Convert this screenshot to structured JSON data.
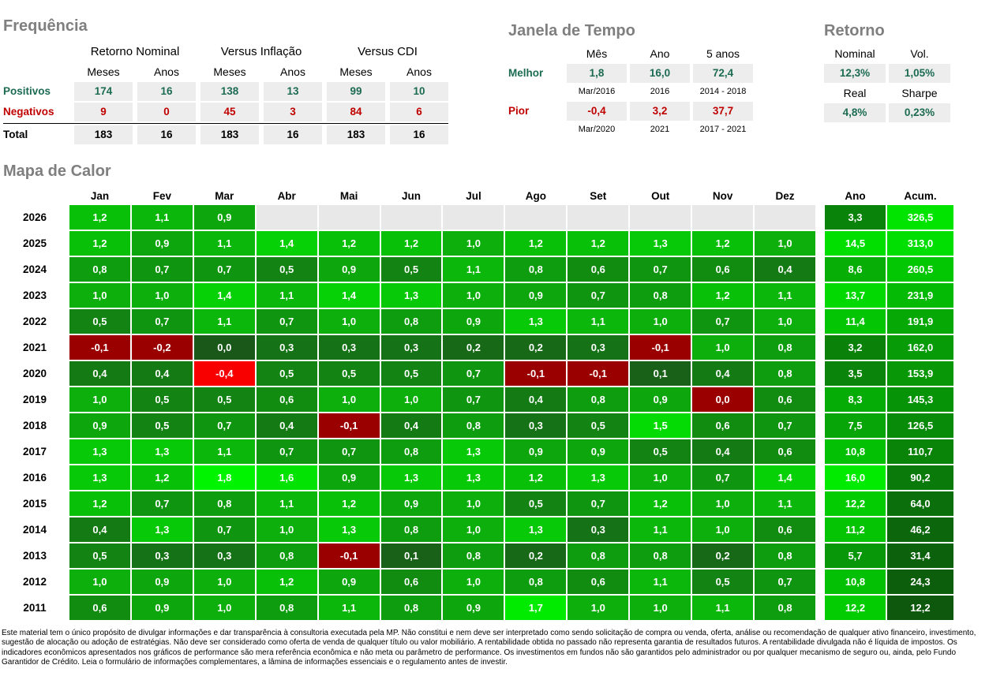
{
  "colors": {
    "positive": "#1C6B52",
    "negative": "#C00000",
    "neutral": "#000000",
    "title_gray": "#7F7F7F",
    "cell_bg": "#EDEDED"
  },
  "frequencia": {
    "title": "Frequência",
    "groups": [
      "Retorno Nominal",
      "Versus Inflação",
      "Versus CDI"
    ],
    "sub_headers": [
      "Meses",
      "Anos",
      "Meses",
      "Anos",
      "Meses",
      "Anos"
    ],
    "rows": [
      {
        "label": "Positivos",
        "color": "positive",
        "values": [
          "174",
          "16",
          "138",
          "13",
          "99",
          "10"
        ]
      },
      {
        "label": "Negativos",
        "color": "negative",
        "values": [
          "9",
          "0",
          "45",
          "3",
          "84",
          "6"
        ]
      },
      {
        "label": "Total",
        "color": "neutral",
        "values": [
          "183",
          "16",
          "183",
          "16",
          "183",
          "16"
        ]
      }
    ]
  },
  "janela": {
    "title": "Janela de Tempo",
    "headers": [
      "Mês",
      "Ano",
      "5 anos"
    ],
    "rows": [
      {
        "label": "Melhor",
        "color": "positive",
        "values": [
          "1,8",
          "16,0",
          "72,4"
        ],
        "periods": [
          "Mar/2016",
          "2016",
          "2014 - 2018"
        ]
      },
      {
        "label": "Pior",
        "color": "negative",
        "values": [
          "-0,4",
          "3,2",
          "37,7"
        ],
        "periods": [
          "Mar/2020",
          "2021",
          "2017 - 2021"
        ]
      }
    ]
  },
  "retorno": {
    "title": "Retorno",
    "rows": [
      {
        "headers": [
          "Nominal",
          "Vol."
        ],
        "values": [
          "12,3%",
          "1,05%"
        ]
      },
      {
        "headers": [
          "Real",
          "Sharpe"
        ],
        "values": [
          "4,8%",
          "0,23%"
        ]
      }
    ]
  },
  "chart_data": {
    "type": "heatmap",
    "title": "Mapa de Calor",
    "columns": [
      "Jan",
      "Fev",
      "Mar",
      "Abr",
      "Mai",
      "Jun",
      "Jul",
      "Ago",
      "Set",
      "Out",
      "Nov",
      "Dez"
    ],
    "extra_columns": [
      "Ano",
      "Acum."
    ],
    "rows": [
      {
        "year": "2026",
        "months": [
          1.2,
          1.1,
          0.9,
          null,
          null,
          null,
          null,
          null,
          null,
          null,
          null,
          null
        ],
        "ano": 3.3,
        "acum": 326.5
      },
      {
        "year": "2025",
        "months": [
          1.2,
          0.9,
          1.1,
          1.4,
          1.2,
          1.2,
          1.0,
          1.2,
          1.2,
          1.3,
          1.2,
          1.0
        ],
        "ano": 14.5,
        "acum": 313.0
      },
      {
        "year": "2024",
        "months": [
          0.8,
          0.7,
          0.7,
          0.5,
          0.9,
          0.5,
          1.1,
          0.8,
          0.6,
          0.7,
          0.6,
          0.4
        ],
        "ano": 8.6,
        "acum": 260.5
      },
      {
        "year": "2023",
        "months": [
          1.0,
          1.0,
          1.4,
          1.1,
          1.4,
          1.3,
          1.0,
          0.9,
          0.7,
          0.8,
          1.2,
          1.1
        ],
        "ano": 13.7,
        "acum": 231.9
      },
      {
        "year": "2022",
        "months": [
          0.5,
          0.7,
          1.1,
          0.7,
          1.0,
          0.8,
          0.9,
          1.3,
          1.1,
          1.0,
          0.7,
          1.0
        ],
        "ano": 11.4,
        "acum": 191.9
      },
      {
        "year": "2021",
        "months": [
          -0.1,
          -0.2,
          0.0,
          0.3,
          0.3,
          0.3,
          0.2,
          0.2,
          0.3,
          -0.1,
          1.0,
          0.8
        ],
        "ano": 3.2,
        "acum": 162.0
      },
      {
        "year": "2020",
        "months": [
          0.4,
          0.4,
          -0.4,
          0.5,
          0.5,
          0.5,
          0.7,
          -0.1,
          -0.1,
          0.1,
          0.4,
          0.8
        ],
        "ano": 3.5,
        "acum": 153.9
      },
      {
        "year": "2019",
        "months": [
          1.0,
          0.5,
          0.5,
          0.6,
          1.0,
          1.0,
          0.7,
          0.4,
          0.8,
          0.9,
          0.0,
          0.6
        ],
        "ano": 8.3,
        "acum": 145.3
      },
      {
        "year": "2018",
        "months": [
          0.9,
          0.5,
          0.7,
          0.4,
          -0.1,
          0.4,
          0.8,
          0.3,
          0.5,
          1.5,
          0.6,
          0.7
        ],
        "ano": 7.5,
        "acum": 126.5
      },
      {
        "year": "2017",
        "months": [
          1.3,
          1.3,
          1.1,
          0.7,
          0.7,
          0.8,
          1.3,
          0.9,
          0.9,
          0.5,
          0.4,
          0.6
        ],
        "ano": 10.8,
        "acum": 110.7
      },
      {
        "year": "2016",
        "months": [
          1.3,
          1.2,
          1.8,
          1.6,
          0.9,
          1.3,
          1.3,
          1.2,
          1.3,
          1.0,
          0.7,
          1.4
        ],
        "ano": 16.0,
        "acum": 90.2
      },
      {
        "year": "2015",
        "months": [
          1.2,
          0.7,
          0.8,
          1.1,
          1.2,
          0.9,
          1.0,
          0.5,
          0.7,
          1.2,
          1.0,
          1.1
        ],
        "ano": 12.2,
        "acum": 64.0
      },
      {
        "year": "2014",
        "months": [
          0.4,
          1.3,
          0.7,
          1.0,
          1.3,
          0.8,
          1.0,
          1.3,
          0.3,
          1.1,
          1.0,
          0.6
        ],
        "ano": 11.2,
        "acum": 46.2
      },
      {
        "year": "2013",
        "months": [
          0.5,
          0.3,
          0.3,
          0.8,
          -0.1,
          0.1,
          0.8,
          0.2,
          0.8,
          0.8,
          0.2,
          0.8
        ],
        "ano": 5.7,
        "acum": 31.4
      },
      {
        "year": "2012",
        "months": [
          1.0,
          0.9,
          1.0,
          1.2,
          0.9,
          0.6,
          1.0,
          0.8,
          0.6,
          1.1,
          0.5,
          0.7
        ],
        "ano": 10.8,
        "acum": 24.3
      },
      {
        "year": "2011",
        "months": [
          0.6,
          0.9,
          1.0,
          0.8,
          1.1,
          0.8,
          0.9,
          1.7,
          1.0,
          1.0,
          1.1,
          0.8
        ],
        "ano": 12.2,
        "acum": 12.2
      }
    ],
    "color_scale": {
      "empty": "#E8E8E8",
      "dark_red": "#9B0000",
      "bright_red": "#F80000",
      "bright_red_threshold": -0.3,
      "month_ramp": {
        "min": 0,
        "max": 1.8,
        "from": [
          26,
          88,
          26
        ],
        "to": [
          0,
          244,
          0
        ]
      },
      "ano_ramp": {
        "min": 3.2,
        "max": 16.0,
        "from": [
          10,
          130,
          10
        ],
        "to": [
          0,
          235,
          0
        ]
      },
      "acum_ramp": {
        "min": 12.2,
        "max": 326.5,
        "from": [
          13,
          88,
          13
        ],
        "to": [
          0,
          228,
          0
        ]
      },
      "overrides": [
        {
          "year": "2019",
          "col": 10,
          "color": "#9B0000"
        }
      ]
    }
  },
  "disclaimer": "Este material tem o único propósito de divulgar informações e dar transparência à consultoria executada pela MP. Não constitui e nem deve ser interpretado como sendo solicitação de compra ou venda, oferta, análise ou recomendação de qualquer ativo financeiro, investimento, sugestão de alocação ou adoção de estratégias. Não deve ser considerado como oferta de venda de qualquer título ou valor mobiliário. A rentabilidade obtida no passado não representa garantia de resultados futuros. A rentabilidade divulgada não é líquida de impostos. Os indicadores econômicos apresentados nos gráficos de performance são mera referência econômica e não meta ou parâmetro de performance. Os investimentos em fundos não são garantidos pelo administrador ou por qualquer mecanismo de seguro ou, ainda, pelo Fundo Garantidor de Crédito. Leia o formulário de informações complementares, a lâmina de informações essenciais e o regulamento antes de investir."
}
